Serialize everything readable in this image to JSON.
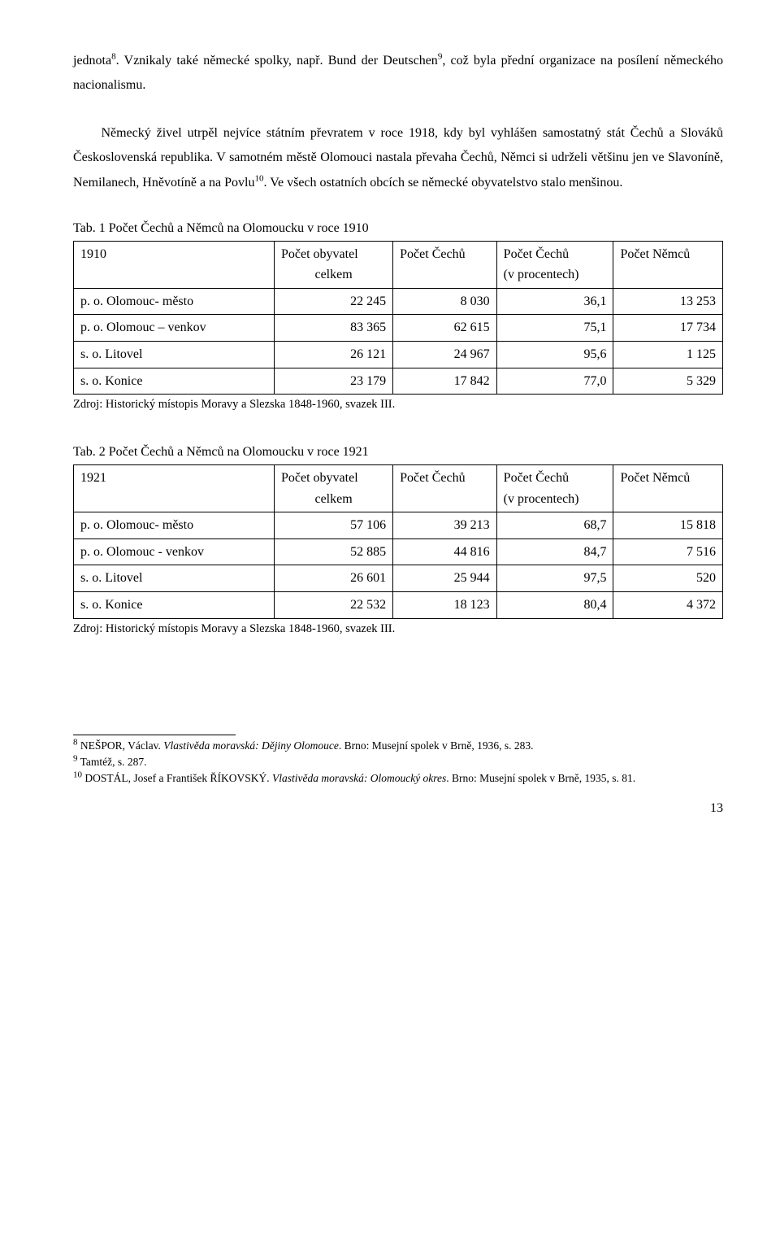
{
  "paragraph1_html": "jednota<sup>8</sup>. Vznikaly také německé spolky, např. Bund der Deutschen<sup>9</sup>, což byla přední organizace na posílení německého nacionalismu.",
  "paragraph2_html": "&nbsp;&nbsp;&nbsp;&nbsp;&nbsp;Německý živel utrpěl nejvíce státním převratem v roce 1918, kdy byl vyhlášen samostatný stát Čechů a Slováků Československá republika. V samotném městě Olomouci nastala převaha Čechů, Němci si udrželi většinu jen ve Slavoníně, Nemilanech, Hněvotíně a na Povlu<sup>10</sup>. Ve všech ostatních obcích se německé obyvatelstvo stalo menšinou.",
  "table1": {
    "caption": "Tab. 1 Počet Čechů a Němců na Olomoucku v roce 1910",
    "year": "1910",
    "headers": {
      "col2_l1": "Počet obyvatel",
      "col2_l2": "celkem",
      "col3": "Počet Čechů",
      "col4_l1": "Počet Čechů",
      "col4_l2": "(v procentech)",
      "col5": "Počet Němců"
    },
    "rows": [
      {
        "label": "p. o. Olomouc- město",
        "total": "22 245",
        "czechs": "8 030",
        "pct": "36,1",
        "germans": "13 253"
      },
      {
        "label": "p. o. Olomouc – venkov",
        "total": "83 365",
        "czechs": "62 615",
        "pct": "75,1",
        "germans": "17 734"
      },
      {
        "label": "s. o. Litovel",
        "total": "26 121",
        "czechs": "24 967",
        "pct": "95,6",
        "germans": "1 125"
      },
      {
        "label": "s. o. Konice",
        "total": "23 179",
        "czechs": "17 842",
        "pct": "77,0",
        "germans": "5 329"
      }
    ],
    "source": "Zdroj: Historický místopis Moravy a Slezska 1848-1960, svazek III."
  },
  "table2": {
    "caption": "Tab. 2 Počet Čechů a Němců na Olomoucku v roce 1921",
    "year": "1921",
    "headers": {
      "col2_l1": "Počet obyvatel",
      "col2_l2": "celkem",
      "col3": "Počet Čechů",
      "col4_l1": "Počet Čechů",
      "col4_l2": "(v procentech)",
      "col5": "Počet Němců"
    },
    "rows": [
      {
        "label": "p. o. Olomouc- město",
        "total": "57 106",
        "czechs": "39 213",
        "pct": "68,7",
        "germans": "15 818"
      },
      {
        "label": "p. o. Olomouc - venkov",
        "total": "52 885",
        "czechs": "44 816",
        "pct": "84,7",
        "germans": "7 516"
      },
      {
        "label": "s. o. Litovel",
        "total": "26 601",
        "czechs": "25 944",
        "pct": "97,5",
        "germans": "520"
      },
      {
        "label": "s. o. Konice",
        "total": "22 532",
        "czechs": "18 123",
        "pct": "80,4",
        "germans": "4 372"
      }
    ],
    "source": "Zdroj: Historický místopis Moravy a Slezska 1848-1960, svazek III."
  },
  "footnotes": {
    "f8_html": "<sup>8</sup> NEŠPOR, Václav. <span class=\"italic\">Vlastivěda moravská: Dějiny Olomouce</span>. Brno: Musejní spolek v Brně, 1936, s. 283.",
    "f9_html": "<sup>9</sup> Tamtéž, s. 287.",
    "f10_html": "<sup>10</sup> DOSTÁL, Josef a František ŘÍKOVSKÝ. <span class=\"italic\">Vlastivěda moravská: Olomoucký okres</span>. Brno: Musejní spolek v Brně, 1935, s. 81."
  },
  "page_number": "13"
}
